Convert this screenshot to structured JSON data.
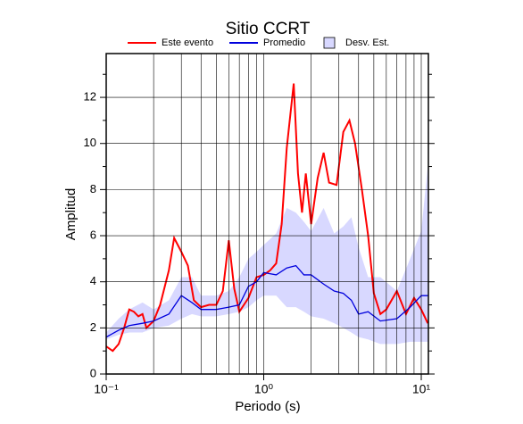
{
  "chart_data": {
    "type": "line",
    "title": "Sitio CCRT",
    "xlabel": "Periodo (s)",
    "ylabel": "Amplitud",
    "xscale": "log",
    "xlim": [
      0.1,
      11.1
    ],
    "ylim": [
      0,
      13.9
    ],
    "xticks": [
      {
        "value": 0.1,
        "label": "10⁻¹"
      },
      {
        "value": 1,
        "label": "10⁰"
      },
      {
        "value": 10,
        "label": "10¹"
      }
    ],
    "xgrid": [
      0.2,
      0.3,
      0.4,
      0.5,
      0.6,
      0.7,
      0.8,
      0.9,
      2,
      3,
      4,
      5,
      6,
      7,
      8,
      9
    ],
    "yticks": [
      0,
      2,
      4,
      6,
      8,
      10,
      12
    ],
    "yminor": [
      1,
      3,
      5,
      7,
      9,
      11,
      13
    ],
    "grid": true,
    "series": [
      {
        "name": "Este evento",
        "color": "#ff0000",
        "x": [
          0.1,
          0.11,
          0.12,
          0.13,
          0.14,
          0.15,
          0.16,
          0.17,
          0.18,
          0.2,
          0.22,
          0.25,
          0.27,
          0.3,
          0.33,
          0.36,
          0.4,
          0.45,
          0.5,
          0.55,
          0.6,
          0.65,
          0.7,
          0.8,
          0.9,
          1.0,
          1.1,
          1.2,
          1.3,
          1.4,
          1.55,
          1.65,
          1.75,
          1.85,
          2.0,
          2.2,
          2.4,
          2.6,
          2.9,
          3.2,
          3.5,
          3.8,
          4.2,
          4.6,
          5.0,
          5.5,
          6.0,
          7.0,
          8.0,
          9.0,
          10,
          11
        ],
        "values": [
          1.2,
          1.0,
          1.3,
          2.0,
          2.8,
          2.7,
          2.5,
          2.6,
          2.0,
          2.3,
          3.0,
          4.5,
          5.9,
          5.3,
          4.7,
          3.2,
          2.9,
          3.0,
          3.0,
          3.6,
          5.8,
          3.7,
          2.7,
          3.3,
          4.2,
          4.3,
          4.5,
          4.8,
          6.5,
          9.8,
          12.6,
          8.7,
          7.0,
          8.7,
          6.5,
          8.5,
          9.6,
          8.3,
          8.2,
          10.5,
          11.0,
          10.0,
          8.0,
          6.0,
          3.5,
          2.6,
          2.8,
          3.6,
          2.6,
          3.3,
          2.8,
          2.2
        ]
      },
      {
        "name": "Promedio",
        "color": "#0000dd",
        "x": [
          0.1,
          0.12,
          0.14,
          0.17,
          0.2,
          0.25,
          0.3,
          0.35,
          0.4,
          0.5,
          0.6,
          0.7,
          0.8,
          0.9,
          1.0,
          1.2,
          1.4,
          1.6,
          1.8,
          2.0,
          2.4,
          2.8,
          3.2,
          3.6,
          4.0,
          4.6,
          5.5,
          7.0,
          8.5,
          10,
          11
        ],
        "values": [
          1.6,
          1.9,
          2.1,
          2.2,
          2.3,
          2.6,
          3.4,
          3.1,
          2.8,
          2.8,
          2.9,
          3.0,
          3.8,
          4.0,
          4.4,
          4.3,
          4.6,
          4.7,
          4.3,
          4.3,
          3.9,
          3.6,
          3.5,
          3.2,
          2.6,
          2.7,
          2.3,
          2.4,
          2.9,
          3.4,
          3.4
        ]
      }
    ],
    "band": {
      "name": "Desv. Est.",
      "color": "#d8d8ff",
      "x": [
        0.1,
        0.12,
        0.14,
        0.17,
        0.2,
        0.25,
        0.3,
        0.35,
        0.4,
        0.5,
        0.6,
        0.7,
        0.8,
        0.9,
        1.0,
        1.2,
        1.4,
        1.6,
        1.8,
        2.0,
        2.4,
        2.8,
        3.2,
        3.6,
        4.0,
        4.6,
        5.5,
        7.0,
        8.5,
        10,
        11
      ],
      "lower": [
        1.5,
        1.7,
        1.8,
        1.8,
        2.0,
        2.1,
        2.4,
        2.6,
        2.5,
        2.5,
        2.6,
        2.7,
        2.9,
        3.2,
        3.4,
        3.4,
        2.9,
        2.9,
        2.7,
        2.5,
        2.4,
        2.2,
        2.0,
        1.8,
        1.6,
        1.5,
        1.3,
        1.3,
        1.4,
        1.4,
        1.4
      ],
      "upper": [
        1.8,
        2.4,
        2.8,
        3.1,
        2.8,
        3.2,
        4.2,
        4.2,
        3.4,
        3.4,
        3.6,
        4.2,
        5.0,
        5.3,
        5.6,
        6.1,
        7.2,
        7.0,
        6.6,
        6.2,
        7.2,
        6.1,
        6.4,
        6.8,
        5.5,
        4.2,
        4.2,
        3.6,
        5.0,
        6.2,
        9.0
      ]
    }
  }
}
